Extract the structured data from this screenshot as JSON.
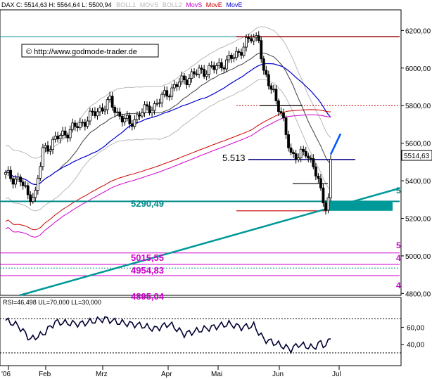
{
  "header": {
    "instrument": "DAX C: 5514,63 H: 5564,64 L: 5500,94",
    "legend": [
      {
        "label": "BOLL1",
        "color": "#b8b8b8"
      },
      {
        "label": "MOVS",
        "color": "#b8b8b8"
      },
      {
        "label": "BOLL2",
        "color": "#b8b8b8"
      },
      {
        "label": "MovS",
        "color": "#cc00cc"
      },
      {
        "label": "MovE",
        "color": "#cc0000"
      },
      {
        "label": "MovE",
        "color": "#0000cc"
      }
    ]
  },
  "copyright": "© http://www.godmode-trader.de",
  "chart_data": {
    "type": "candlestick",
    "ylim": [
      4790,
      6310
    ],
    "y_ticks": [
      "6200,00",
      "6000,00",
      "5800,00",
      "5600,00",
      "5400,00",
      "5200,00",
      "5000,00",
      "4800,00"
    ],
    "y_tick_values": [
      6200,
      6000,
      5800,
      5600,
      5400,
      5200,
      5000,
      4800
    ],
    "x_ticks": [
      "'06",
      "Feb",
      "Mrz",
      "Apr",
      "Mai",
      "Jun",
      "Jul"
    ],
    "last_price_label": "5514,63",
    "last_price": 5514.63,
    "levels": [
      {
        "label": "5.513",
        "value": 5513,
        "color": "#000080"
      },
      {
        "label": "5290,49",
        "value": 5290.49,
        "color": "#008b8b"
      },
      {
        "label": "5015,55",
        "value": 5015.55,
        "color": "#cc00cc"
      },
      {
        "label": "4954,83",
        "value": 4954.83,
        "color": "#cc00cc"
      },
      {
        "label": "4895,04",
        "value": 4895.04,
        "color": "#cc00cc"
      }
    ],
    "right_labels": [
      "5",
      "5",
      "4",
      "4"
    ],
    "rsi": {
      "label": "RSI=46,498 UL=70,000 LL=30,000",
      "value": 46.498,
      "ul": 70,
      "ll": 30,
      "ticks": [
        "60,00",
        "40,00"
      ],
      "tick_values": [
        60,
        40
      ]
    }
  }
}
